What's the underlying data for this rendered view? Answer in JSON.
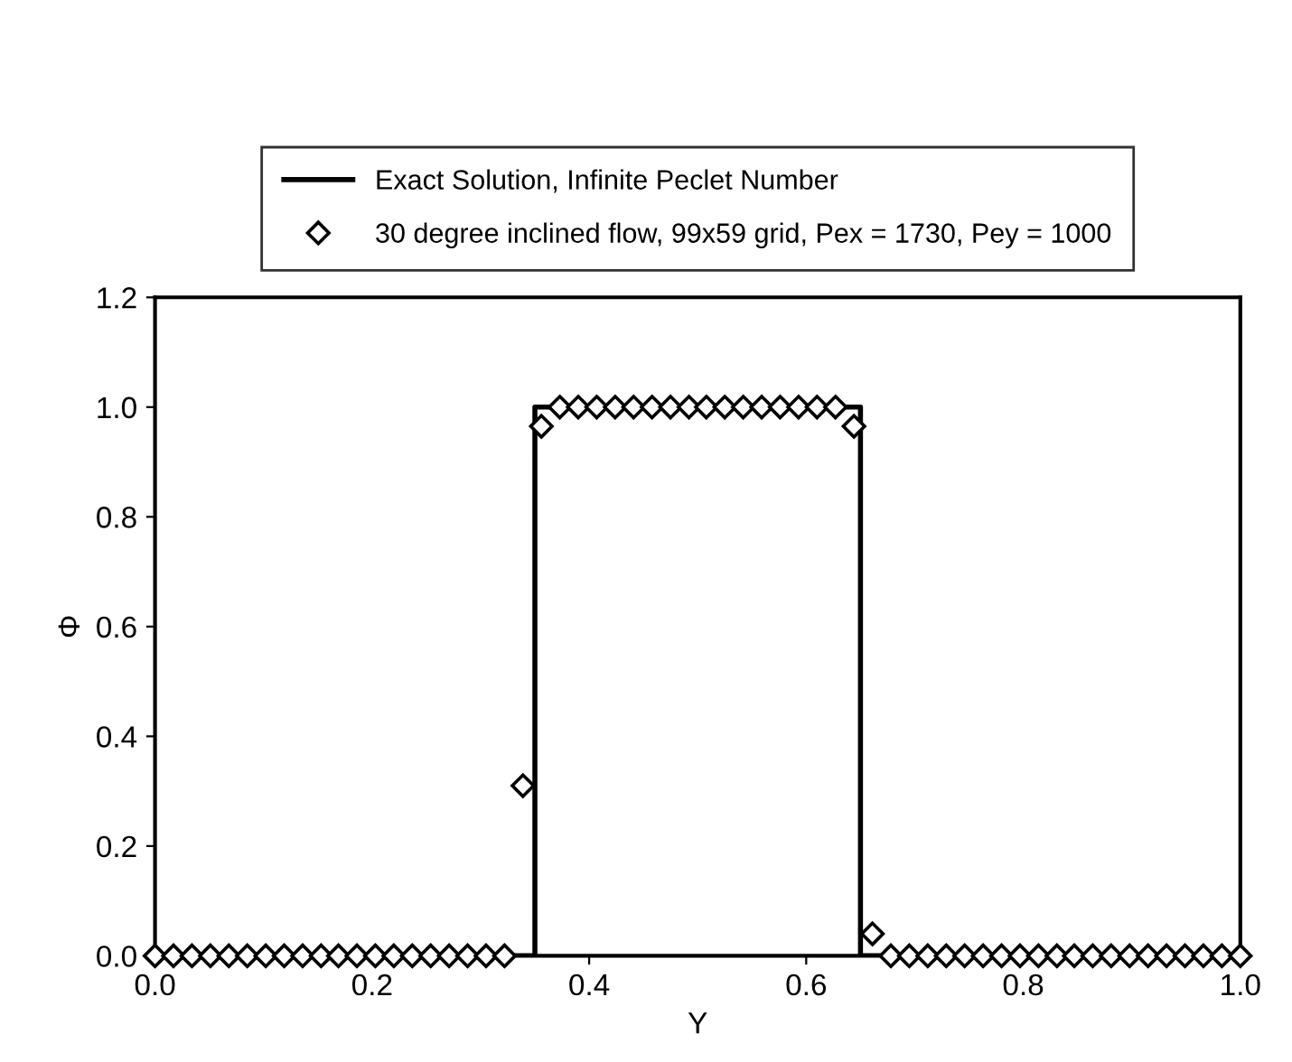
{
  "chart_data": {
    "type": "line",
    "xlabel": "Y",
    "ylabel": "Φ",
    "xlim": [
      0,
      1
    ],
    "ylim": [
      0,
      1.2
    ],
    "xticks": [
      {
        "value": 0,
        "label": "0.0"
      },
      {
        "value": 0.2,
        "label": "0.2"
      },
      {
        "value": 0.4,
        "label": "0.4"
      },
      {
        "value": 0.6,
        "label": "0.6"
      },
      {
        "value": 0.8,
        "label": "0.8"
      },
      {
        "value": 1,
        "label": "1.0"
      }
    ],
    "yticks": [
      {
        "value": 0,
        "label": "0.0"
      },
      {
        "value": 0.2,
        "label": "0.2"
      },
      {
        "value": 0.4,
        "label": "0.4"
      },
      {
        "value": 0.6,
        "label": "0.6"
      },
      {
        "value": 0.8,
        "label": "0.8"
      },
      {
        "value": 1,
        "label": "1.0"
      },
      {
        "value": 1.2,
        "label": "1.2"
      }
    ],
    "grid": false,
    "legend": "top",
    "series": [
      {
        "name": "Exact Solution, Infinite Peclet Number",
        "color": "#000000",
        "marker": "none",
        "line_style": "solid",
        "x": [
          0,
          0.35,
          0.35,
          0.65,
          0.65,
          1.0
        ],
        "values": [
          0,
          0,
          1,
          1,
          0,
          0
        ]
      },
      {
        "name": "30 degree inclined flow, 99x59 grid, Pex = 1730, Pey = 1000",
        "type": "scatter",
        "color": "#000000",
        "marker": "diamond",
        "x": [
          0,
          0.017,
          0.034,
          0.051,
          0.068,
          0.085,
          0.102,
          0.119,
          0.136,
          0.153,
          0.169,
          0.186,
          0.203,
          0.22,
          0.237,
          0.254,
          0.271,
          0.288,
          0.305,
          0.322,
          0.339,
          0.356,
          0.373,
          0.39,
          0.407,
          0.424,
          0.441,
          0.458,
          0.475,
          0.492,
          0.508,
          0.525,
          0.542,
          0.559,
          0.576,
          0.593,
          0.61,
          0.627,
          0.644,
          0.661,
          0.678,
          0.695,
          0.712,
          0.729,
          0.746,
          0.763,
          0.78,
          0.797,
          0.814,
          0.831,
          0.847,
          0.864,
          0.881,
          0.898,
          0.915,
          0.932,
          0.949,
          0.966,
          0.983,
          1.0
        ],
        "values": [
          0,
          0,
          0,
          0,
          0,
          0,
          0,
          0,
          0,
          0,
          0,
          0,
          0,
          0,
          0,
          0,
          0,
          0,
          0,
          0,
          0.31,
          0.965,
          1,
          1,
          1,
          1,
          1,
          1,
          1,
          1,
          1,
          1,
          1,
          1,
          1,
          1,
          1,
          1,
          0.965,
          0.04,
          0,
          0,
          0,
          0,
          0,
          0,
          0,
          0,
          0,
          0,
          0,
          0,
          0,
          0,
          0,
          0,
          0,
          0,
          0,
          0
        ]
      }
    ]
  }
}
